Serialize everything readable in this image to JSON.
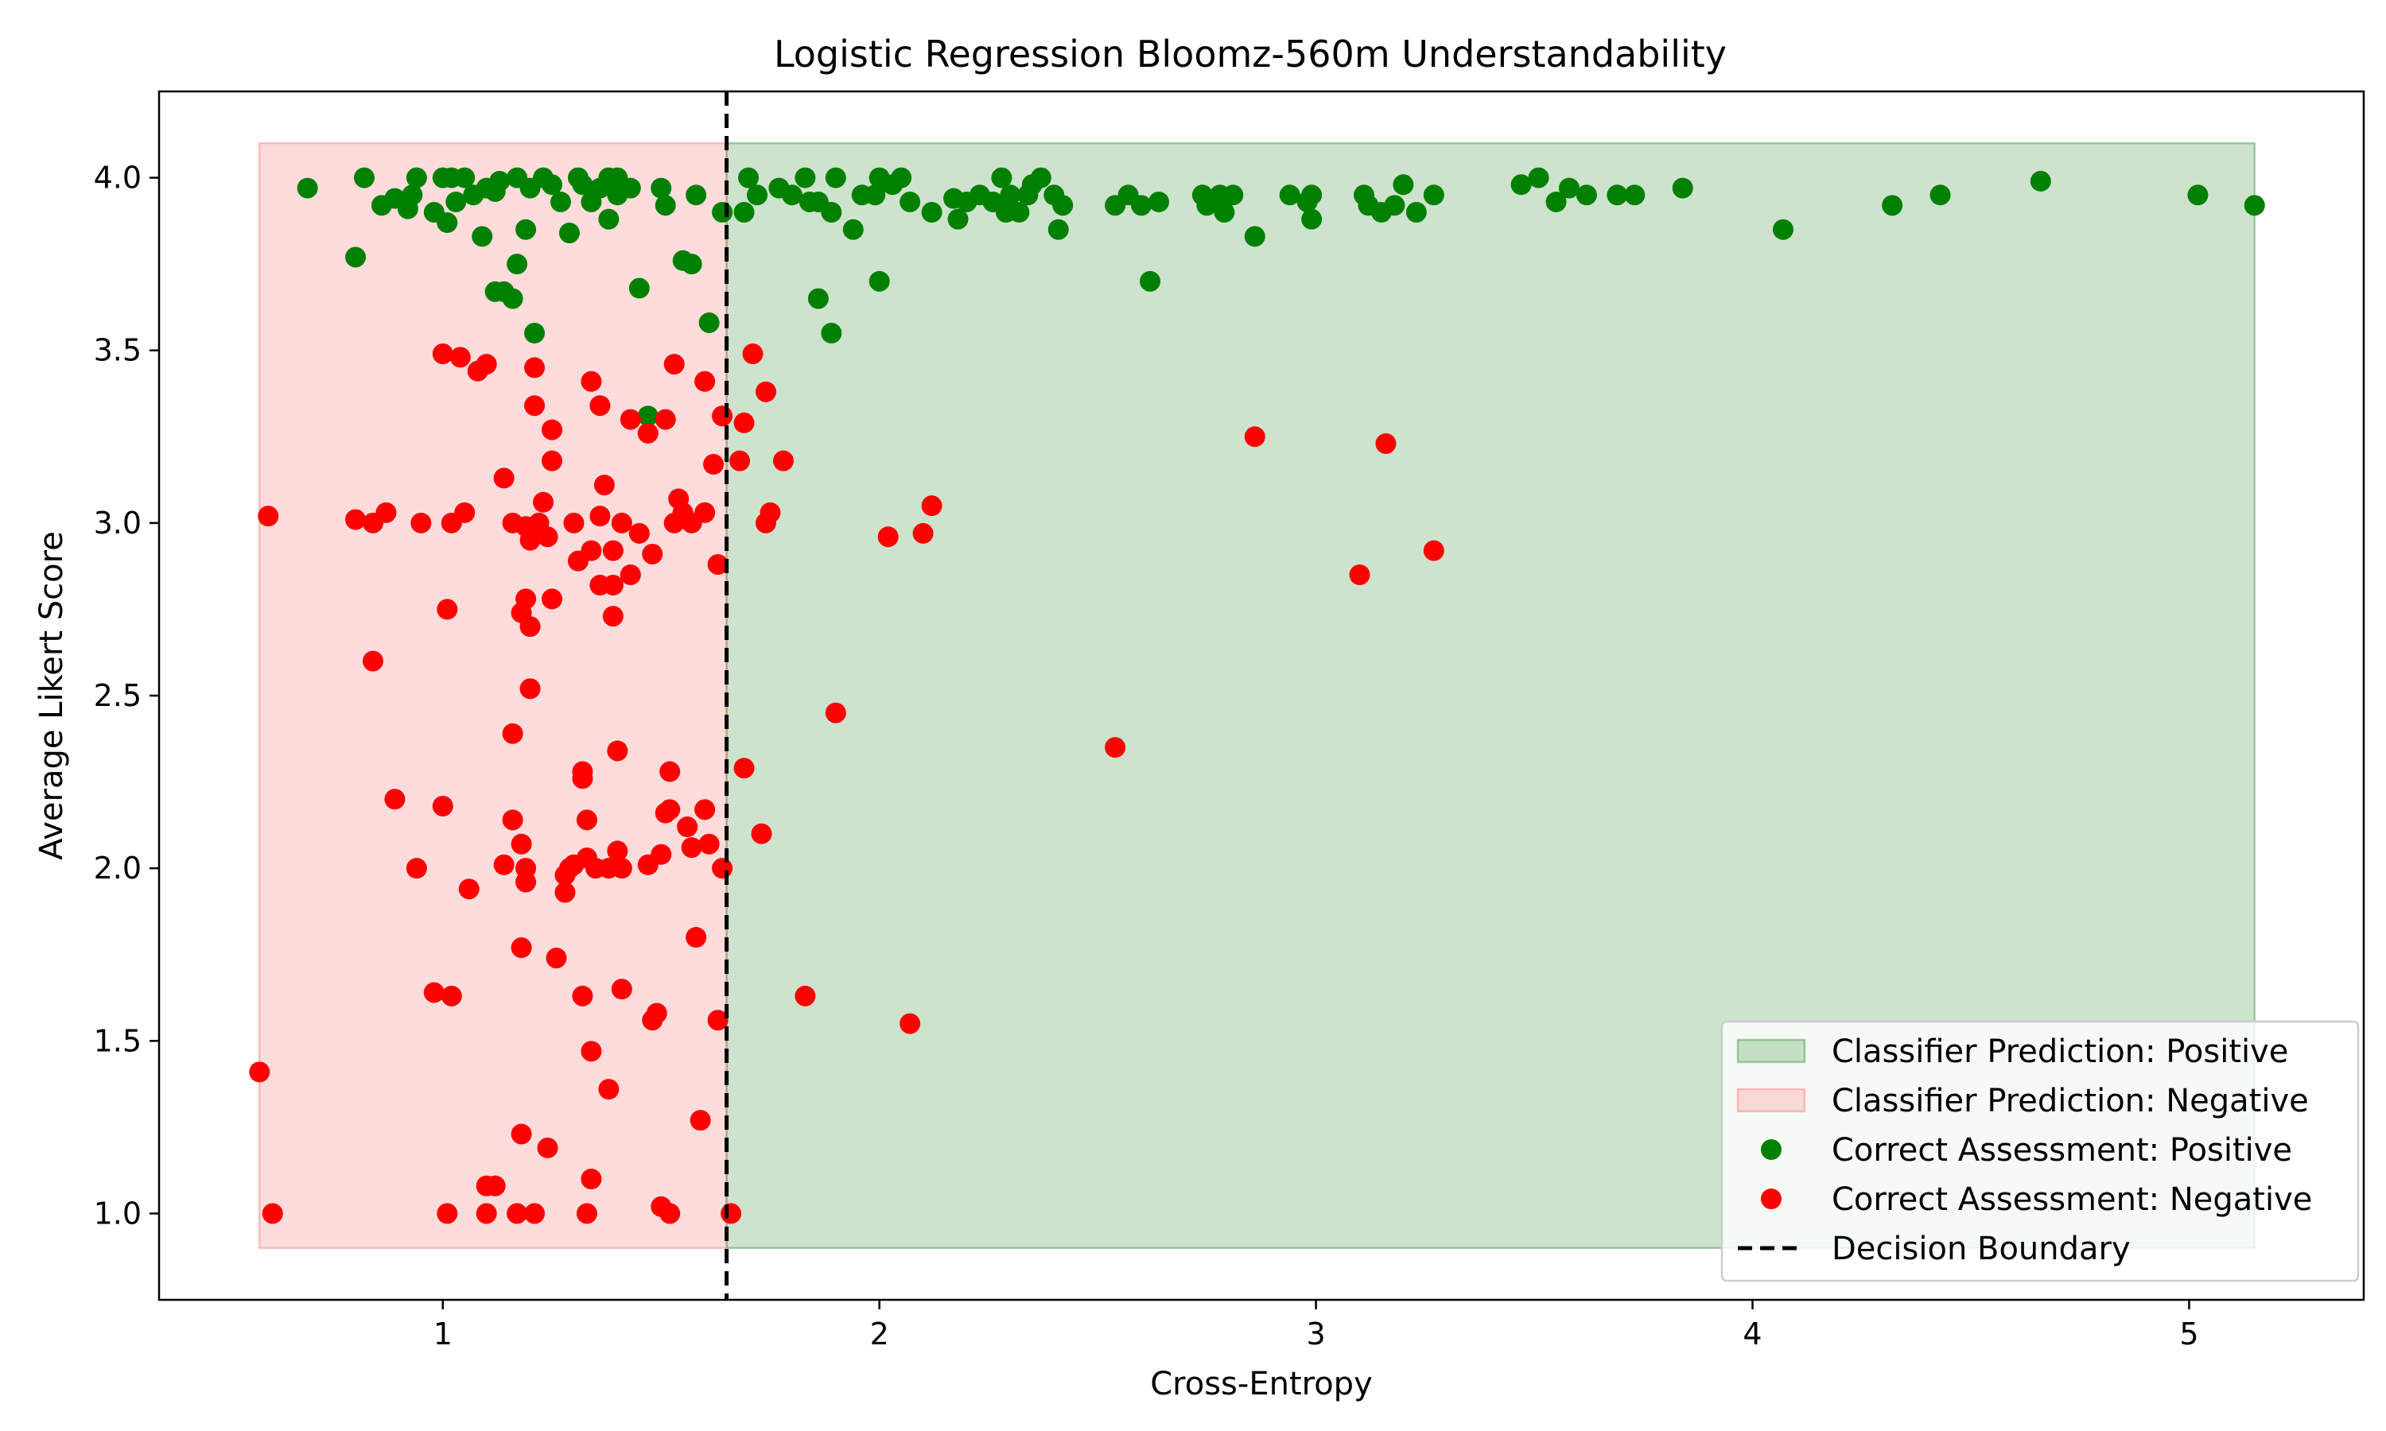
{
  "chart_data": {
    "type": "scatter",
    "title": "Logistic Regression Bloomz-560m Understandability",
    "xlabel": "Cross-Entropy",
    "ylabel": "Average Likert Score",
    "xlim": [
      0.35,
      5.4
    ],
    "ylim": [
      0.75,
      4.25
    ],
    "xticks": [
      1,
      2,
      3,
      4,
      5
    ],
    "yticks": [
      1.0,
      1.5,
      2.0,
      2.5,
      3.0,
      3.5,
      4.0
    ],
    "xtick_labels": [
      "1",
      "2",
      "3",
      "4",
      "5"
    ],
    "ytick_labels": [
      "1.0",
      "1.5",
      "2.0",
      "2.5",
      "3.0",
      "3.5",
      "4.0"
    ],
    "grid": false,
    "legend_position": "lower-right",
    "decision_boundary": 1.65,
    "regions": [
      {
        "name": "Classifier Prediction: Positive",
        "x": [
          1.65,
          5.15
        ],
        "y": [
          0.9,
          4.1
        ],
        "color": "#2e8b2e"
      },
      {
        "name": "Classifier Prediction: Negative",
        "x": [
          0.58,
          1.65
        ],
        "y": [
          0.9,
          4.1
        ],
        "color": "#ff6b6b"
      }
    ],
    "series": [
      {
        "name": "Correct Assessment: Positive",
        "color": "#008000",
        "points": [
          [
            0.69,
            3.97
          ],
          [
            0.8,
            3.77
          ],
          [
            0.82,
            4.0
          ],
          [
            0.86,
            3.92
          ],
          [
            0.89,
            3.94
          ],
          [
            0.92,
            3.91
          ],
          [
            0.93,
            3.95
          ],
          [
            0.94,
            4.0
          ],
          [
            0.98,
            3.9
          ],
          [
            1.0,
            4.0
          ],
          [
            1.01,
            3.87
          ],
          [
            1.02,
            4.0
          ],
          [
            1.03,
            3.93
          ],
          [
            1.05,
            4.0
          ],
          [
            1.07,
            3.95
          ],
          [
            1.09,
            3.83
          ],
          [
            1.1,
            3.97
          ],
          [
            1.12,
            3.96
          ],
          [
            1.13,
            3.99
          ],
          [
            1.12,
            3.67
          ],
          [
            1.14,
            3.67
          ],
          [
            1.16,
            3.65
          ],
          [
            1.17,
            3.75
          ],
          [
            1.17,
            4.0
          ],
          [
            1.19,
            3.85
          ],
          [
            1.2,
            3.97
          ],
          [
            1.21,
            3.55
          ],
          [
            1.23,
            4.0
          ],
          [
            1.25,
            3.98
          ],
          [
            1.27,
            3.93
          ],
          [
            1.29,
            3.84
          ],
          [
            1.31,
            4.0
          ],
          [
            1.32,
            3.98
          ],
          [
            1.34,
            3.93
          ],
          [
            1.36,
            3.97
          ],
          [
            1.38,
            4.0
          ],
          [
            1.38,
            3.88
          ],
          [
            1.4,
            3.95
          ],
          [
            1.4,
            4.0
          ],
          [
            1.43,
            3.97
          ],
          [
            1.45,
            3.68
          ],
          [
            1.47,
            3.31
          ],
          [
            1.5,
            3.97
          ],
          [
            1.51,
            3.92
          ],
          [
            1.55,
            3.76
          ],
          [
            1.57,
            3.75
          ],
          [
            1.58,
            3.95
          ],
          [
            1.61,
            3.58
          ],
          [
            1.64,
            3.9
          ],
          [
            1.69,
            3.9
          ],
          [
            1.7,
            4.0
          ],
          [
            1.72,
            3.95
          ],
          [
            1.77,
            3.97
          ],
          [
            1.8,
            3.95
          ],
          [
            1.83,
            4.0
          ],
          [
            1.84,
            3.93
          ],
          [
            1.86,
            3.65
          ],
          [
            1.86,
            3.93
          ],
          [
            1.89,
            3.55
          ],
          [
            1.89,
            3.9
          ],
          [
            1.9,
            4.0
          ],
          [
            1.94,
            3.85
          ],
          [
            1.96,
            3.95
          ],
          [
            1.99,
            3.95
          ],
          [
            2.0,
            3.7
          ],
          [
            2.0,
            4.0
          ],
          [
            2.03,
            3.98
          ],
          [
            2.05,
            4.0
          ],
          [
            2.07,
            3.93
          ],
          [
            2.12,
            3.9
          ],
          [
            2.17,
            3.94
          ],
          [
            2.18,
            3.88
          ],
          [
            2.2,
            3.93
          ],
          [
            2.23,
            3.95
          ],
          [
            2.26,
            3.93
          ],
          [
            2.28,
            4.0
          ],
          [
            2.29,
            3.9
          ],
          [
            2.3,
            3.95
          ],
          [
            2.32,
            3.9
          ],
          [
            2.34,
            3.95
          ],
          [
            2.35,
            3.98
          ],
          [
            2.37,
            4.0
          ],
          [
            2.4,
            3.95
          ],
          [
            2.41,
            3.85
          ],
          [
            2.42,
            3.92
          ],
          [
            2.54,
            3.92
          ],
          [
            2.57,
            3.95
          ],
          [
            2.6,
            3.92
          ],
          [
            2.62,
            3.7
          ],
          [
            2.64,
            3.93
          ],
          [
            2.74,
            3.95
          ],
          [
            2.75,
            3.92
          ],
          [
            2.78,
            3.95
          ],
          [
            2.79,
            3.9
          ],
          [
            2.81,
            3.95
          ],
          [
            2.86,
            3.83
          ],
          [
            2.94,
            3.95
          ],
          [
            2.98,
            3.93
          ],
          [
            2.99,
            3.95
          ],
          [
            2.99,
            3.88
          ],
          [
            3.11,
            3.95
          ],
          [
            3.12,
            3.92
          ],
          [
            3.15,
            3.9
          ],
          [
            3.18,
            3.92
          ],
          [
            3.2,
            3.98
          ],
          [
            3.23,
            3.9
          ],
          [
            3.27,
            3.95
          ],
          [
            3.47,
            3.98
          ],
          [
            3.51,
            4.0
          ],
          [
            3.55,
            3.93
          ],
          [
            3.58,
            3.97
          ],
          [
            3.62,
            3.95
          ],
          [
            3.69,
            3.95
          ],
          [
            3.73,
            3.95
          ],
          [
            3.84,
            3.97
          ],
          [
            4.07,
            3.85
          ],
          [
            4.32,
            3.92
          ],
          [
            4.43,
            3.95
          ],
          [
            4.66,
            3.99
          ],
          [
            5.02,
            3.95
          ],
          [
            5.15,
            3.92
          ]
        ]
      },
      {
        "name": "Correct Assessment: Negative",
        "color": "#ff0000",
        "points": [
          [
            0.58,
            1.41
          ],
          [
            0.6,
            3.02
          ],
          [
            0.61,
            1.0
          ],
          [
            0.8,
            3.01
          ],
          [
            0.84,
            3.0
          ],
          [
            0.84,
            2.6
          ],
          [
            0.87,
            3.03
          ],
          [
            0.89,
            2.2
          ],
          [
            0.94,
            2.0
          ],
          [
            0.95,
            3.0
          ],
          [
            0.98,
            1.64
          ],
          [
            1.0,
            3.49
          ],
          [
            1.0,
            2.18
          ],
          [
            1.01,
            2.75
          ],
          [
            1.01,
            1.0
          ],
          [
            1.02,
            3.0
          ],
          [
            1.02,
            1.63
          ],
          [
            1.04,
            3.48
          ],
          [
            1.05,
            3.03
          ],
          [
            1.06,
            1.94
          ],
          [
            1.08,
            3.44
          ],
          [
            1.1,
            3.46
          ],
          [
            1.1,
            1.08
          ],
          [
            1.1,
            1.0
          ],
          [
            1.12,
            1.08
          ],
          [
            1.14,
            3.13
          ],
          [
            1.14,
            2.01
          ],
          [
            1.16,
            3.0
          ],
          [
            1.16,
            2.39
          ],
          [
            1.16,
            2.14
          ],
          [
            1.17,
            1.0
          ],
          [
            1.18,
            2.74
          ],
          [
            1.18,
            2.07
          ],
          [
            1.18,
            1.77
          ],
          [
            1.18,
            1.23
          ],
          [
            1.19,
            2.99
          ],
          [
            1.19,
            2.78
          ],
          [
            1.19,
            2.0
          ],
          [
            1.19,
            1.96
          ],
          [
            1.2,
            2.7
          ],
          [
            1.2,
            2.95
          ],
          [
            1.2,
            2.52
          ],
          [
            1.21,
            3.45
          ],
          [
            1.21,
            3.34
          ],
          [
            1.21,
            1.0
          ],
          [
            1.22,
            3.0
          ],
          [
            1.23,
            3.06
          ],
          [
            1.24,
            2.96
          ],
          [
            1.24,
            1.19
          ],
          [
            1.25,
            3.27
          ],
          [
            1.25,
            3.18
          ],
          [
            1.25,
            2.78
          ],
          [
            1.26,
            1.74
          ],
          [
            1.28,
            1.98
          ],
          [
            1.28,
            1.93
          ],
          [
            1.29,
            2.0
          ],
          [
            1.3,
            3.0
          ],
          [
            1.3,
            2.01
          ],
          [
            1.31,
            2.89
          ],
          [
            1.32,
            2.26
          ],
          [
            1.32,
            2.28
          ],
          [
            1.32,
            1.63
          ],
          [
            1.33,
            2.03
          ],
          [
            1.33,
            2.14
          ],
          [
            1.33,
            1.0
          ],
          [
            1.34,
            3.41
          ],
          [
            1.34,
            2.92
          ],
          [
            1.34,
            1.47
          ],
          [
            1.34,
            1.1
          ],
          [
            1.35,
            2.0
          ],
          [
            1.36,
            3.34
          ],
          [
            1.36,
            3.02
          ],
          [
            1.36,
            2.82
          ],
          [
            1.37,
            3.11
          ],
          [
            1.38,
            2.0
          ],
          [
            1.38,
            1.36
          ],
          [
            1.39,
            2.92
          ],
          [
            1.39,
            2.82
          ],
          [
            1.39,
            2.73
          ],
          [
            1.4,
            2.34
          ],
          [
            1.4,
            2.05
          ],
          [
            1.41,
            3.0
          ],
          [
            1.41,
            2.0
          ],
          [
            1.41,
            1.65
          ],
          [
            1.43,
            3.3
          ],
          [
            1.43,
            2.85
          ],
          [
            1.45,
            2.97
          ],
          [
            1.47,
            3.26
          ],
          [
            1.47,
            2.01
          ],
          [
            1.48,
            2.91
          ],
          [
            1.48,
            1.56
          ],
          [
            1.49,
            1.58
          ],
          [
            1.5,
            2.04
          ],
          [
            1.5,
            1.02
          ],
          [
            1.51,
            3.3
          ],
          [
            1.51,
            2.16
          ],
          [
            1.52,
            2.17
          ],
          [
            1.52,
            2.28
          ],
          [
            1.52,
            1.0
          ],
          [
            1.53,
            3.0
          ],
          [
            1.53,
            3.46
          ],
          [
            1.54,
            3.07
          ],
          [
            1.55,
            3.03
          ],
          [
            1.56,
            2.12
          ],
          [
            1.57,
            3.0
          ],
          [
            1.57,
            2.06
          ],
          [
            1.58,
            1.8
          ],
          [
            1.59,
            1.27
          ],
          [
            1.6,
            3.41
          ],
          [
            1.6,
            3.03
          ],
          [
            1.6,
            2.17
          ],
          [
            1.61,
            2.07
          ],
          [
            1.62,
            3.17
          ],
          [
            1.63,
            2.88
          ],
          [
            1.63,
            1.56
          ],
          [
            1.64,
            3.31
          ],
          [
            1.64,
            2.0
          ],
          [
            1.66,
            1.0
          ],
          [
            1.68,
            3.18
          ],
          [
            1.69,
            3.29
          ],
          [
            1.69,
            2.29
          ],
          [
            1.71,
            3.49
          ],
          [
            1.73,
            2.1
          ],
          [
            1.74,
            3.38
          ],
          [
            1.74,
            3.0
          ],
          [
            1.75,
            3.03
          ],
          [
            1.78,
            3.18
          ],
          [
            1.83,
            1.63
          ],
          [
            1.9,
            2.45
          ],
          [
            2.02,
            2.96
          ],
          [
            2.07,
            1.55
          ],
          [
            2.1,
            2.97
          ],
          [
            2.12,
            3.05
          ],
          [
            2.54,
            2.35
          ],
          [
            2.86,
            3.25
          ],
          [
            3.1,
            2.85
          ],
          [
            3.16,
            3.23
          ],
          [
            3.27,
            2.92
          ]
        ]
      }
    ]
  },
  "legend": {
    "items": [
      {
        "label": "Classifier Prediction: Positive",
        "kind": "patch",
        "color": "#2e8b2e"
      },
      {
        "label": "Classifier Prediction: Negative",
        "kind": "patch",
        "color": "#ff6b6b"
      },
      {
        "label": "Correct Assessment: Positive",
        "kind": "marker",
        "color": "#008000"
      },
      {
        "label": "Correct Assessment: Negative",
        "kind": "marker",
        "color": "#ff0000"
      },
      {
        "label": "Decision Boundary",
        "kind": "dashed-line",
        "color": "#000000"
      }
    ]
  }
}
